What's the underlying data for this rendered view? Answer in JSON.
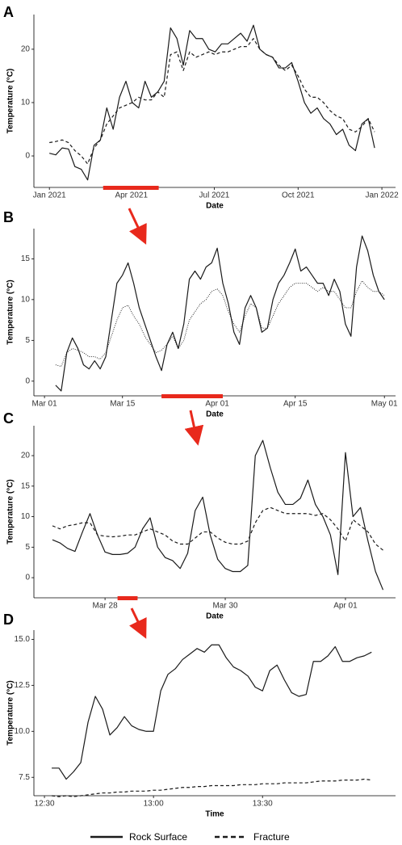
{
  "chart_data": [
    {
      "type": "line",
      "panel": "A",
      "x_label": "Date",
      "y_label": "Temperature (°C)",
      "x": [
        0,
        7,
        14,
        21,
        28,
        35,
        42,
        49,
        56,
        63,
        70,
        77,
        84,
        91,
        98,
        105,
        112,
        119,
        126,
        133,
        140,
        147,
        154,
        161,
        168,
        175,
        182,
        189,
        196,
        203,
        210,
        217,
        224,
        231,
        238,
        245,
        252,
        259,
        266,
        273,
        280,
        287,
        294,
        301,
        308,
        315,
        322,
        329,
        336,
        343,
        350,
        357
      ],
      "series": [
        {
          "name": "Rock Surface",
          "color": "#1a1a1a",
          "dash": "solid",
          "values": [
            0.5,
            0.2,
            1.5,
            1.3,
            -2,
            -2.5,
            -4.5,
            2,
            3,
            9,
            5,
            11,
            14,
            10,
            9,
            14,
            11,
            12,
            14,
            24,
            22,
            17,
            23.5,
            22,
            22,
            20,
            19.5,
            21,
            21,
            22,
            23,
            21.5,
            24.5,
            20,
            19,
            18.5,
            16.5,
            16.5,
            17.5,
            14,
            10,
            8,
            9,
            7,
            6,
            4,
            5,
            2,
            1,
            6,
            7,
            1.5
          ]
        },
        {
          "name": "Fracture",
          "color": "#1a1a1a",
          "dash": "dashed",
          "values": [
            2.5,
            2.7,
            3,
            2.5,
            1,
            0,
            -1.5,
            1.5,
            3,
            6,
            7.5,
            9,
            9.5,
            10,
            11,
            10.5,
            10.5,
            12,
            11,
            19,
            19.5,
            16,
            19.5,
            18.5,
            19,
            19.5,
            19,
            19.5,
            19.5,
            20,
            20.5,
            20.5,
            22,
            20,
            19,
            18.5,
            17,
            16,
            17,
            15,
            12.5,
            11,
            11,
            10,
            8.5,
            7.5,
            7,
            5,
            4.5,
            5.5,
            7,
            4.5
          ]
        }
      ],
      "xlim": [
        -17,
        380
      ],
      "xticks": [
        {
          "value": 0,
          "label": "Jan 2021"
        },
        {
          "value": 90,
          "label": "Apr 2021"
        },
        {
          "value": 181,
          "label": "Jul 2021"
        },
        {
          "value": 273,
          "label": "Oct 2021"
        },
        {
          "value": 365,
          "label": "Jan 2022"
        }
      ],
      "ylim": [
        -5.9,
        26.5
      ],
      "yticks": [
        0,
        10,
        20
      ],
      "highlight": [
        59,
        120
      ],
      "highlight_color": "#e8291c"
    },
    {
      "type": "line",
      "panel": "B",
      "x_label": "Date",
      "y_label": "Temperature (°C)",
      "x": [
        2,
        3,
        4,
        5,
        6,
        7,
        8,
        9,
        10,
        11,
        12,
        13,
        14,
        15,
        16,
        17,
        18,
        19,
        20,
        21,
        22,
        23,
        24,
        25,
        26,
        27,
        28,
        29,
        30,
        31,
        32,
        33,
        34,
        35,
        36,
        37,
        38,
        39,
        40,
        41,
        42,
        43,
        44,
        45,
        46,
        47,
        48,
        49,
        50,
        51,
        52,
        53,
        54,
        55,
        56,
        57,
        58,
        59,
        60,
        61
      ],
      "series": [
        {
          "color": "#1a1a1a",
          "dash": "solid",
          "values": [
            -0.5,
            -1.2,
            3.5,
            5.3,
            4,
            2,
            1.5,
            2.5,
            1.5,
            3,
            7.5,
            12,
            13,
            14.5,
            12,
            9,
            7,
            5,
            3,
            1.3,
            4.5,
            6,
            4,
            7,
            12.5,
            13.5,
            12.5,
            14,
            14.5,
            16.3,
            12,
            9.5,
            6,
            4.5,
            9,
            10.5,
            9,
            6,
            6.5,
            10,
            12,
            13,
            14.5,
            16.2,
            13.5,
            14,
            13,
            12,
            12,
            10.5,
            12.5,
            11,
            7,
            5.5,
            14,
            17.8,
            16,
            13,
            11,
            10
          ]
        },
        {
          "color": "#1a1a1a",
          "dash": "dotted",
          "values": [
            2,
            1.8,
            3.5,
            4,
            3.8,
            3.5,
            3,
            3,
            2.7,
            3.5,
            5.5,
            7.5,
            9,
            9.3,
            8,
            7,
            5.5,
            4.5,
            3.5,
            3.8,
            4.5,
            5.5,
            4,
            5,
            7.5,
            8.5,
            9.5,
            10,
            11,
            11.3,
            10.5,
            8.5,
            7,
            6,
            8,
            9.5,
            9,
            6.5,
            6.5,
            8,
            9.5,
            10.5,
            11.5,
            12,
            12,
            12,
            11.5,
            11,
            11.5,
            11,
            11,
            10,
            9,
            9,
            11,
            12.3,
            11.5,
            11,
            11,
            10.5
          ]
        }
      ],
      "xlim": [
        -1.9,
        63
      ],
      "xticks": [
        {
          "value": 0,
          "label": "Mar 01"
        },
        {
          "value": 14,
          "label": "Mar 15"
        },
        {
          "value": 31,
          "label": "Apr 01"
        },
        {
          "value": 45,
          "label": "Apr 15"
        },
        {
          "value": 61,
          "label": "May 01"
        }
      ],
      "ylim": [
        -1.8,
        18.7
      ],
      "yticks": [
        0,
        5,
        10,
        15
      ],
      "highlight": [
        21,
        32
      ],
      "highlight_color": "#e8291c"
    },
    {
      "type": "line",
      "panel": "C",
      "x_label": "Date",
      "y_label": "Temperature (°C)",
      "x": [
        -21,
        -18,
        -15,
        -12,
        -9,
        -6,
        -3,
        0,
        3,
        6,
        9,
        12,
        15,
        18,
        21,
        24,
        27,
        30,
        33,
        36,
        39,
        42,
        45,
        48,
        51,
        54,
        57,
        60,
        63,
        66,
        69,
        72,
        75,
        78,
        81,
        84,
        87,
        90,
        93,
        96,
        99,
        102,
        105,
        108,
        111
      ],
      "series": [
        {
          "color": "#1a1a1a",
          "dash": "solid",
          "values": [
            6.2,
            5.7,
            4.8,
            4.3,
            7.5,
            10.5,
            7,
            4.2,
            3.8,
            3.8,
            4,
            5,
            8,
            9.8,
            5,
            3.3,
            2.8,
            1.5,
            4,
            11,
            13.2,
            7,
            3,
            1.5,
            1,
            1,
            2,
            20,
            22.5,
            18,
            14,
            12,
            12,
            13,
            16,
            12,
            10,
            7,
            0.5,
            20.5,
            10,
            11.5,
            6,
            1,
            -2
          ]
        },
        {
          "color": "#1a1a1a",
          "dash": "dashed",
          "values": [
            8.5,
            8,
            8.5,
            8.7,
            9,
            9,
            7,
            6.8,
            6.7,
            6.8,
            7,
            7,
            7.5,
            8,
            7.5,
            7,
            6,
            5.5,
            5.5,
            6.5,
            7.5,
            7.5,
            6.5,
            5.8,
            5.5,
            5.5,
            6,
            9,
            11,
            11.5,
            11,
            10.5,
            10.5,
            10.5,
            10.5,
            10.2,
            10.5,
            9.5,
            8,
            6,
            9.5,
            8.5,
            7.5,
            5.5,
            4.5
          ]
        }
      ],
      "xlim": [
        -28.4,
        116
      ],
      "xticks": [
        {
          "value": 0,
          "label": "Mar 28"
        },
        {
          "value": 48,
          "label": "Mar 30"
        },
        {
          "value": 96,
          "label": "Apr 01"
        }
      ],
      "ylim": [
        -3.3,
        24.9
      ],
      "yticks": [
        0,
        5,
        10,
        15,
        20
      ],
      "highlight": [
        5,
        13
      ],
      "highlight_color": "#e8291c"
    },
    {
      "type": "line",
      "panel": "D",
      "x_label": "Time",
      "y_label": "Temperature (°C)",
      "x": [
        2,
        4,
        6,
        8,
        10,
        12,
        14,
        16,
        18,
        20,
        22,
        24,
        26,
        28,
        30,
        32,
        34,
        36,
        38,
        40,
        42,
        44,
        46,
        48,
        50,
        52,
        54,
        56,
        58,
        60,
        62,
        64,
        66,
        68,
        70,
        72,
        74,
        76,
        78,
        80,
        82,
        84,
        86,
        88,
        90
      ],
      "series": [
        {
          "color": "#1a1a1a",
          "dash": "solid",
          "values": [
            8,
            8,
            7.4,
            7.8,
            8.3,
            10.5,
            11.9,
            11.2,
            9.8,
            10.2,
            10.8,
            10.3,
            10.1,
            10,
            10,
            12.2,
            13.1,
            13.4,
            13.9,
            14.2,
            14.5,
            14.3,
            14.7,
            14.7,
            14,
            13.5,
            13.3,
            13,
            12.4,
            12.2,
            13.3,
            13.6,
            12.8,
            12.1,
            11.9,
            12,
            13.8,
            13.8,
            14.1,
            14.6,
            13.8,
            13.8,
            14,
            14.1,
            14.3
          ]
        },
        {
          "color": "#1a1a1a",
          "dash": "dashed",
          "values": [
            6.5,
            6.45,
            6.5,
            6.45,
            6.5,
            6.55,
            6.6,
            6.65,
            6.65,
            6.7,
            6.7,
            6.75,
            6.75,
            6.75,
            6.8,
            6.8,
            6.85,
            6.9,
            6.95,
            6.95,
            7,
            7,
            7.05,
            7.05,
            7.05,
            7.05,
            7.1,
            7.1,
            7.1,
            7.15,
            7.15,
            7.15,
            7.2,
            7.2,
            7.2,
            7.2,
            7.25,
            7.3,
            7.3,
            7.3,
            7.35,
            7.35,
            7.35,
            7.4,
            7.35
          ]
        }
      ],
      "xlim": [
        -2.9,
        96.6
      ],
      "xticks": [
        {
          "value": 0,
          "label": "12:30"
        },
        {
          "value": 30,
          "label": "13:00"
        },
        {
          "value": 60,
          "label": "13:30"
        }
      ],
      "ylim": [
        6.5,
        15.5
      ],
      "yticks": [
        {
          "value": 7.5,
          "label": "7.5"
        },
        {
          "value": 10,
          "label": "10.0"
        },
        {
          "value": 12.5,
          "label": "12.5"
        },
        {
          "value": 15,
          "label": "15.0"
        }
      ]
    }
  ]
}
